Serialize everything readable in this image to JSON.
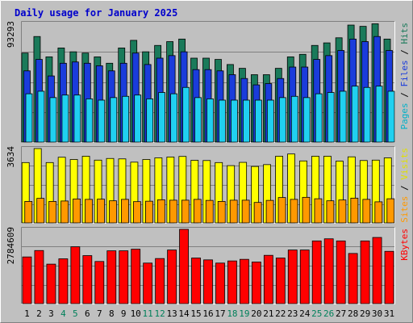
{
  "chart_data": {
    "type": "bar",
    "title": "Daily usage for January 2025",
    "days": [
      "1",
      "2",
      "3",
      "4",
      "5",
      "6",
      "7",
      "8",
      "9",
      "10",
      "11",
      "12",
      "13",
      "14",
      "15",
      "16",
      "17",
      "18",
      "19",
      "20",
      "21",
      "22",
      "23",
      "24",
      "25",
      "26",
      "27",
      "28",
      "29",
      "30",
      "31"
    ],
    "weekend_days": [
      "4",
      "5",
      "11",
      "12",
      "18",
      "19",
      "25",
      "26"
    ],
    "panels": {
      "top": {
        "max_label": "93293",
        "ymax": 93293,
        "legend": [
          "Pages",
          "Files",
          "Hits"
        ],
        "series": [
          {
            "name": "Hits",
            "color": "#1a7a5a",
            "values": [
              70000,
              83000,
              67000,
              74000,
              71000,
              70000,
              67000,
              62000,
              74000,
              80000,
              71000,
              76000,
              79000,
              81000,
              66000,
              66000,
              65000,
              61000,
              58000,
              53000,
              53000,
              58000,
              67000,
              69000,
              76000,
              78000,
              82000,
              92000,
              91000,
              93000,
              81000
            ]
          },
          {
            "name": "Files",
            "color": "#1a3cdb",
            "values": [
              56000,
              65000,
              52000,
              62000,
              63000,
              62000,
              60000,
              56000,
              62000,
              70000,
              61000,
              66000,
              68000,
              71000,
              57000,
              57000,
              56000,
              53000,
              50000,
              45000,
              46000,
              50000,
              59000,
              59000,
              65000,
              68000,
              72000,
              81000,
              79000,
              83000,
              72000
            ]
          },
          {
            "name": "Pages",
            "color": "#20d0f0",
            "values": [
              38000,
              40000,
              35000,
              37000,
              37000,
              34000,
              33000,
              35000,
              36000,
              37000,
              34000,
              39000,
              38000,
              43000,
              35000,
              34000,
              33000,
              33000,
              33000,
              33000,
              33000,
              35000,
              36000,
              35000,
              38000,
              39000,
              40000,
              44000,
              43000,
              44000,
              40000
            ]
          }
        ]
      },
      "middle": {
        "max_label": "3634",
        "ymax": 3634,
        "legend": [
          "Sites",
          "Visits"
        ],
        "series": [
          {
            "name": "Visits",
            "color": "#ffff00",
            "values": [
              2950,
              3634,
              2950,
              3210,
              3100,
              3260,
              3070,
              3150,
              3130,
              2970,
              3100,
              3180,
              3220,
              3250,
              3060,
              3050,
              2950,
              2800,
              2960,
              2760,
              2850,
              3260,
              3370,
              3030,
              3260,
              3260,
              3020,
              3230,
              3050,
              3070,
              3180
            ]
          },
          {
            "name": "Sites",
            "color": "#ff9900",
            "values": [
              1050,
              1200,
              1050,
              1070,
              1170,
              1150,
              1160,
              1080,
              1150,
              1040,
              1060,
              1130,
              1110,
              1110,
              1150,
              1100,
              1050,
              1110,
              1110,
              1000,
              1100,
              1240,
              1150,
              1250,
              1180,
              1080,
              1120,
              1210,
              1150,
              1030,
              1180
            ]
          }
        ]
      },
      "bottom": {
        "max_label": "2784609",
        "ymax": 2784609,
        "legend": [
          "KBytes"
        ],
        "series": [
          {
            "name": "KBytes",
            "color": "#ff0000",
            "values": [
              1750000,
              1990000,
              1480000,
              1680000,
              2130000,
              1800000,
              1580000,
              1980000,
              1980000,
              2040000,
              1520000,
              1690000,
              2010000,
              2784609,
              1710000,
              1640000,
              1520000,
              1600000,
              1660000,
              1560000,
              1810000,
              1710000,
              2010000,
              2010000,
              2350000,
              2430000,
              2350000,
              1880000,
              2350000,
              2480000,
              1960000
            ]
          }
        ]
      }
    }
  }
}
